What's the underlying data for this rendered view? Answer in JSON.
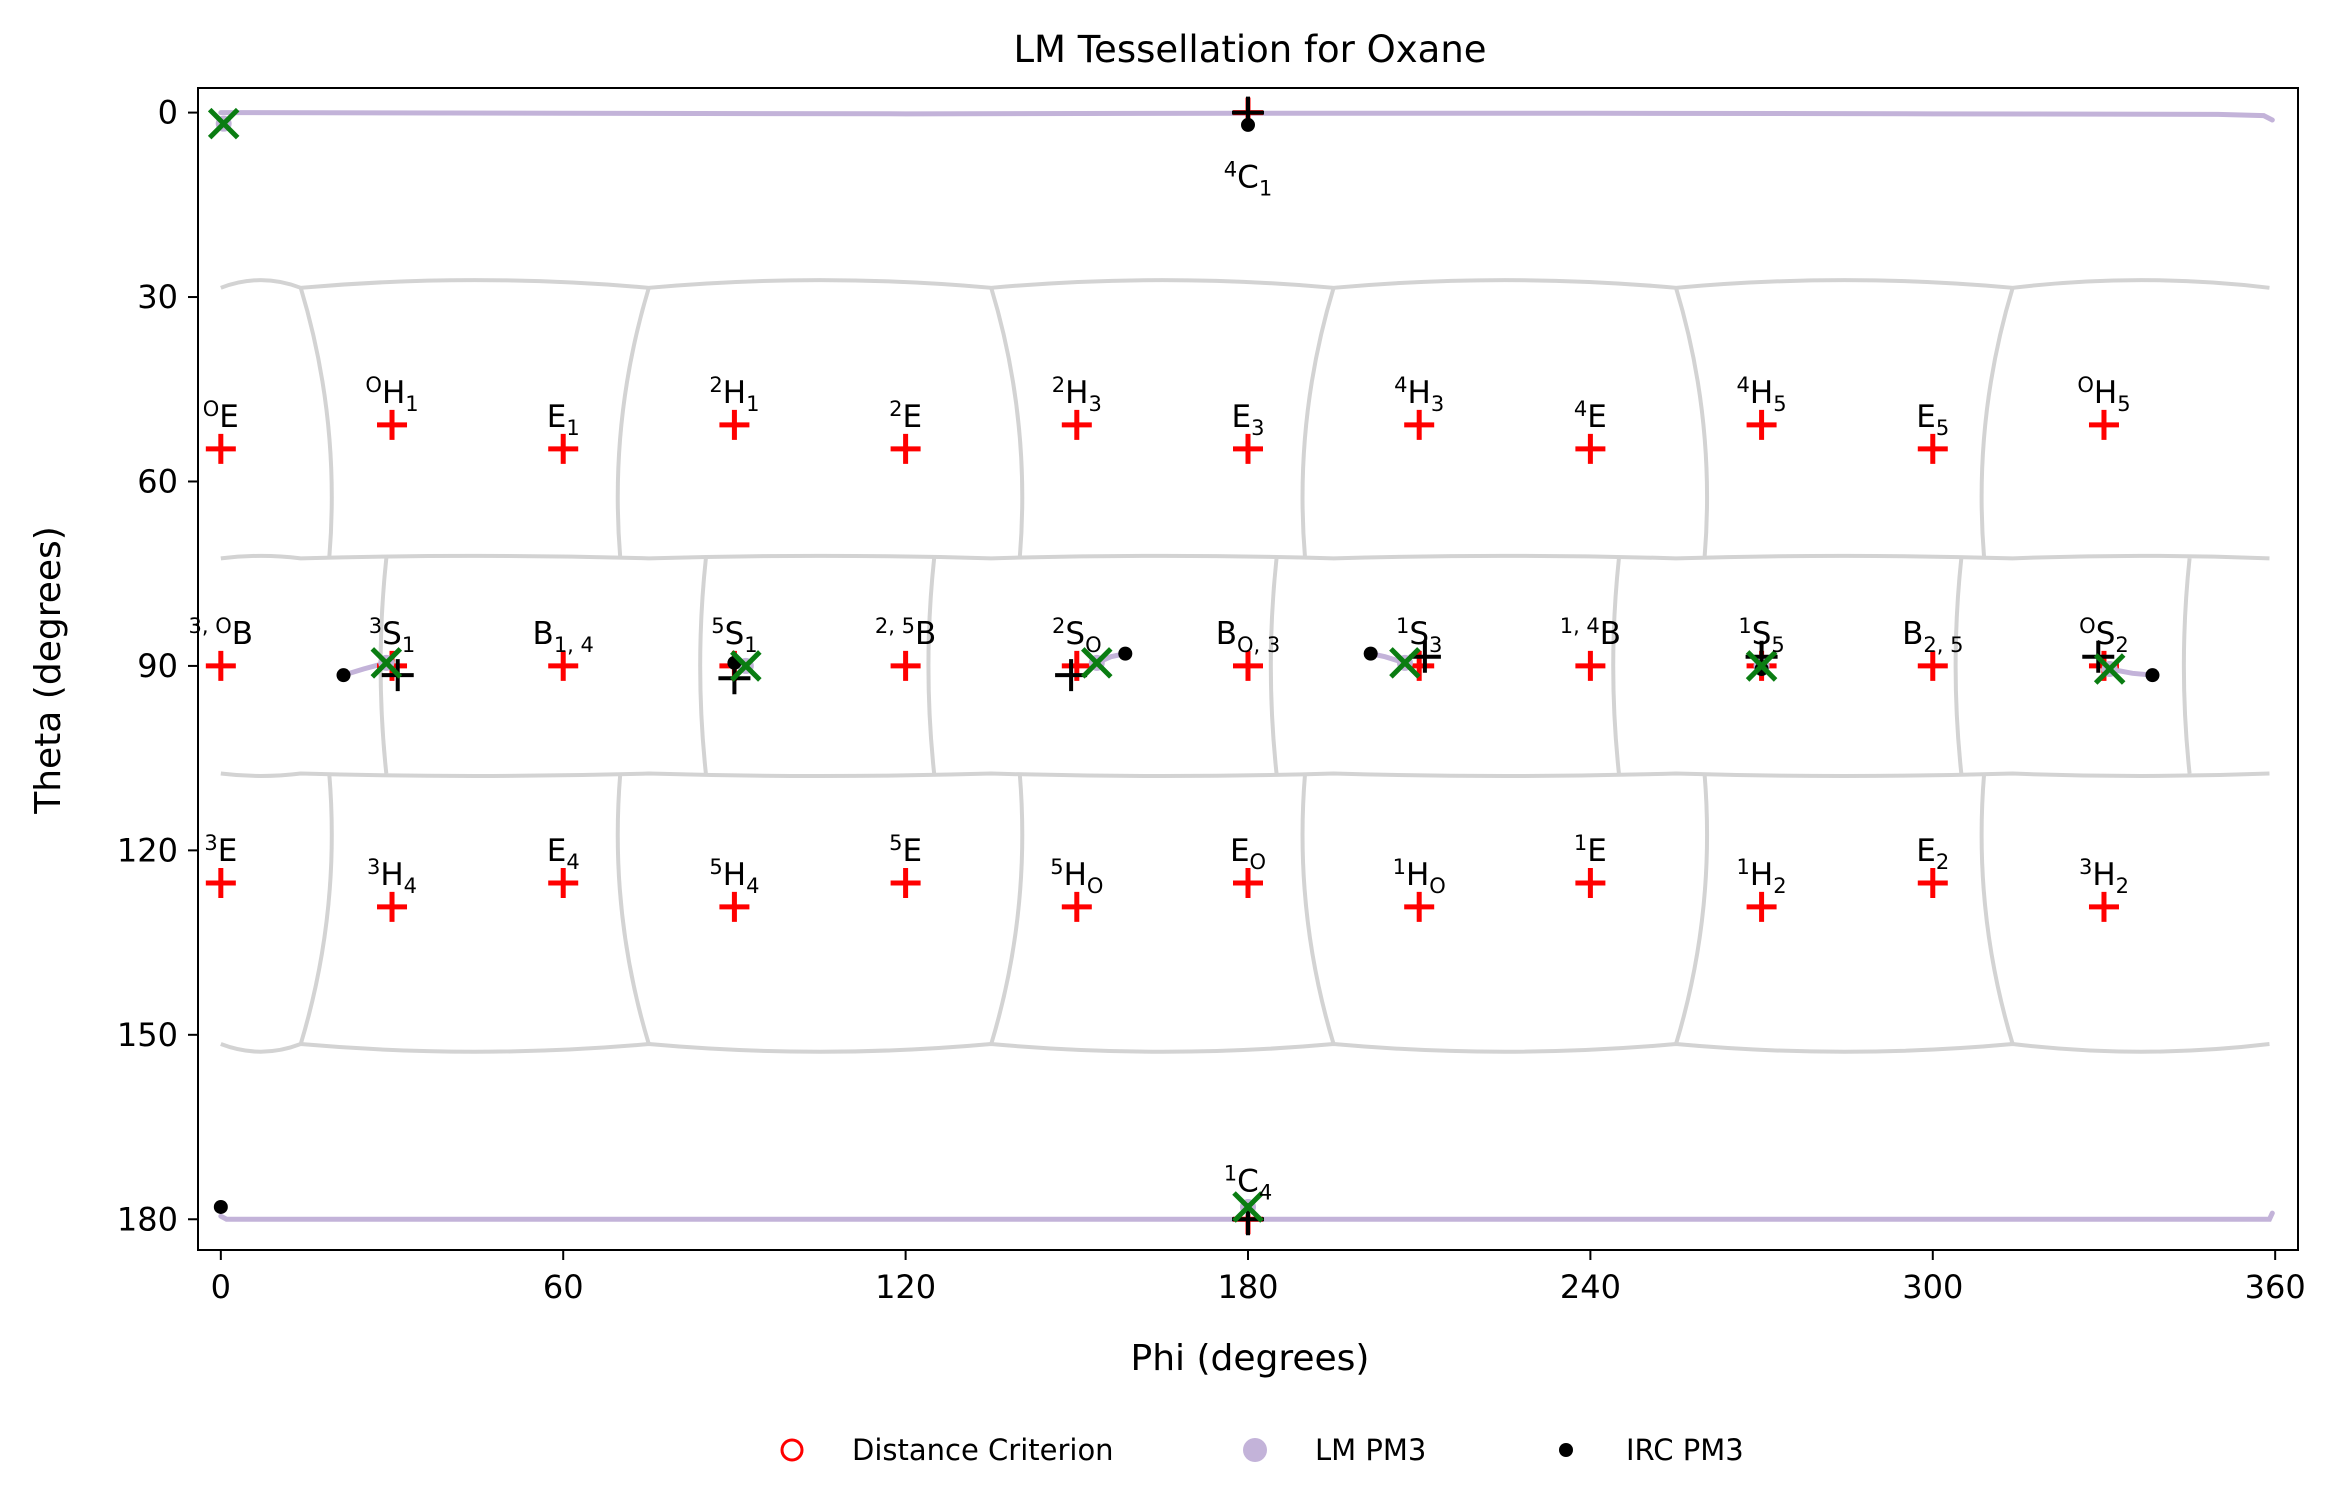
{
  "chart_data": {
    "type": "scatter",
    "title": "LM Tessellation for Oxane",
    "xlabel": "Phi (degrees)",
    "ylabel": "Theta (degrees)",
    "xlim": [
      -4,
      364
    ],
    "ylim": [
      185,
      -4
    ],
    "y_inverted": true,
    "xticks": [
      0,
      60,
      120,
      180,
      240,
      300,
      360
    ],
    "yticks": [
      0,
      30,
      60,
      90,
      120,
      150,
      180
    ],
    "grid": false,
    "legend_position": "bottom-center",
    "legend": [
      {
        "name": "Distance Criterion",
        "marker": "open-circle",
        "color": "#ff0000"
      },
      {
        "name": "LM PM3",
        "marker": "circle",
        "color": "#c3b3d9"
      },
      {
        "name": "IRC PM3",
        "marker": "dot",
        "color": "#000000"
      }
    ],
    "reference_points": [
      {
        "sup": "4",
        "base": "C",
        "sub": "1",
        "phi": 180,
        "theta": 0
      },
      {
        "sup": "O",
        "base": "E",
        "sub": "",
        "phi": 0,
        "theta": 54.7
      },
      {
        "sup": "O",
        "base": "H",
        "sub": "1",
        "phi": 30,
        "theta": 50.8
      },
      {
        "sup": "",
        "base": "E",
        "sub": "1",
        "phi": 60,
        "theta": 54.7
      },
      {
        "sup": "2",
        "base": "H",
        "sub": "1",
        "phi": 90,
        "theta": 50.8
      },
      {
        "sup": "2",
        "base": "E",
        "sub": "",
        "phi": 120,
        "theta": 54.7
      },
      {
        "sup": "2",
        "base": "H",
        "sub": "3",
        "phi": 150,
        "theta": 50.8
      },
      {
        "sup": "",
        "base": "E",
        "sub": "3",
        "phi": 180,
        "theta": 54.7
      },
      {
        "sup": "4",
        "base": "H",
        "sub": "3",
        "phi": 210,
        "theta": 50.8
      },
      {
        "sup": "4",
        "base": "E",
        "sub": "",
        "phi": 240,
        "theta": 54.7
      },
      {
        "sup": "4",
        "base": "H",
        "sub": "5",
        "phi": 270,
        "theta": 50.8
      },
      {
        "sup": "",
        "base": "E",
        "sub": "5",
        "phi": 300,
        "theta": 54.7
      },
      {
        "sup": "O",
        "base": "H",
        "sub": "5",
        "phi": 330,
        "theta": 50.8
      },
      {
        "sup": "3, O",
        "base": "B",
        "sub": "",
        "phi": 0,
        "theta": 90
      },
      {
        "sup": "3",
        "base": "S",
        "sub": "1",
        "phi": 30,
        "theta": 90
      },
      {
        "sup": "",
        "base": "B",
        "sub": "1, 4",
        "phi": 60,
        "theta": 90
      },
      {
        "sup": "5",
        "base": "S",
        "sub": "1",
        "phi": 90,
        "theta": 90
      },
      {
        "sup": "2, 5",
        "base": "B",
        "sub": "",
        "phi": 120,
        "theta": 90
      },
      {
        "sup": "2",
        "base": "S",
        "sub": "O",
        "phi": 150,
        "theta": 90
      },
      {
        "sup": "",
        "base": "B",
        "sub": "O, 3",
        "phi": 180,
        "theta": 90
      },
      {
        "sup": "1",
        "base": "S",
        "sub": "3",
        "phi": 210,
        "theta": 90
      },
      {
        "sup": "1, 4",
        "base": "B",
        "sub": "",
        "phi": 240,
        "theta": 90
      },
      {
        "sup": "1",
        "base": "S",
        "sub": "5",
        "phi": 270,
        "theta": 90
      },
      {
        "sup": "",
        "base": "B",
        "sub": "2, 5",
        "phi": 300,
        "theta": 90
      },
      {
        "sup": "O",
        "base": "S",
        "sub": "2",
        "phi": 330,
        "theta": 90
      },
      {
        "sup": "3",
        "base": "E",
        "sub": "",
        "phi": 0,
        "theta": 125.3
      },
      {
        "sup": "3",
        "base": "H",
        "sub": "4",
        "phi": 30,
        "theta": 129.2
      },
      {
        "sup": "",
        "base": "E",
        "sub": "4",
        "phi": 60,
        "theta": 125.3
      },
      {
        "sup": "5",
        "base": "H",
        "sub": "4",
        "phi": 90,
        "theta": 129.2
      },
      {
        "sup": "5",
        "base": "E",
        "sub": "",
        "phi": 120,
        "theta": 125.3
      },
      {
        "sup": "5",
        "base": "H",
        "sub": "O",
        "phi": 150,
        "theta": 129.2
      },
      {
        "sup": "",
        "base": "E",
        "sub": "O",
        "phi": 180,
        "theta": 125.3
      },
      {
        "sup": "1",
        "base": "H",
        "sub": "O",
        "phi": 210,
        "theta": 129.2
      },
      {
        "sup": "1",
        "base": "E",
        "sub": "",
        "phi": 240,
        "theta": 125.3
      },
      {
        "sup": "1",
        "base": "H",
        "sub": "2",
        "phi": 270,
        "theta": 129.2
      },
      {
        "sup": "",
        "base": "E",
        "sub": "2",
        "phi": 300,
        "theta": 125.3
      },
      {
        "sup": "3",
        "base": "H",
        "sub": "2",
        "phi": 330,
        "theta": 129.2
      },
      {
        "sup": "1",
        "base": "C",
        "sub": "4",
        "phi": 180,
        "theta": 180
      }
    ],
    "lm_pm3_points": [
      {
        "phi": 0.5,
        "theta": 1.8
      },
      {
        "phi": 29,
        "theta": 89.5
      },
      {
        "phi": 92,
        "theta": 90
      },
      {
        "phi": 153.5,
        "theta": 89.5
      },
      {
        "phi": 207.5,
        "theta": 89.5
      },
      {
        "phi": 270,
        "theta": 90
      },
      {
        "phi": 331,
        "theta": 90.5
      },
      {
        "phi": 180,
        "theta": 178
      }
    ],
    "irc_pm3_points": [
      {
        "phi": 180,
        "theta": 2
      },
      {
        "phi": 21.5,
        "theta": 91.5
      },
      {
        "phi": 90,
        "theta": 89.5
      },
      {
        "phi": 158.5,
        "theta": 88
      },
      {
        "phi": 201.5,
        "theta": 88
      },
      {
        "phi": 270,
        "theta": 90.5
      },
      {
        "phi": 338.5,
        "theta": 91.5
      },
      {
        "phi": 0,
        "theta": 178
      }
    ],
    "black_plus_points": [
      {
        "phi": 180,
        "theta": 0
      },
      {
        "phi": 31,
        "theta": 91.5
      },
      {
        "phi": 90,
        "theta": 92
      },
      {
        "phi": 149,
        "theta": 91.5
      },
      {
        "phi": 211,
        "theta": 88.5
      },
      {
        "phi": 270,
        "theta": 88.5
      },
      {
        "phi": 329,
        "theta": 88.5
      },
      {
        "phi": 180,
        "theta": 180
      }
    ],
    "lm_pm3_paths": [
      [
        [
          0,
          0
        ],
        [
          60,
          0.1
        ],
        [
          120,
          0.2
        ],
        [
          180,
          0.1
        ],
        [
          240,
          0.1
        ],
        [
          300,
          0.2
        ],
        [
          350,
          0.3
        ],
        [
          358,
          0.5
        ],
        [
          359.5,
          1.2
        ]
      ],
      [
        [
          0,
          179.5
        ],
        [
          1,
          180
        ],
        [
          60,
          180
        ],
        [
          120,
          180
        ],
        [
          180,
          180
        ],
        [
          240,
          180
        ],
        [
          300,
          180
        ],
        [
          359,
          180
        ],
        [
          359.5,
          179
        ]
      ],
      [
        [
          21.5,
          91.5
        ],
        [
          25,
          90.5
        ],
        [
          29,
          89.5
        ]
      ],
      [
        [
          153.5,
          89.5
        ],
        [
          156,
          88.5
        ],
        [
          158.5,
          88
        ]
      ],
      [
        [
          201.5,
          88
        ],
        [
          204,
          88.5
        ],
        [
          207.5,
          89.5
        ]
      ],
      [
        [
          331,
          90.5
        ],
        [
          335,
          91.2
        ],
        [
          338.5,
          91.5
        ]
      ]
    ],
    "tessellation_boundaries": {
      "top_band": {
        "theta": 28.5,
        "bulge": 2.5,
        "crossings": [
          14,
          75,
          135,
          195,
          255,
          314
        ]
      },
      "bottom_band": {
        "theta": 151.5,
        "bulge": 2.5,
        "crossings": [
          14,
          75,
          135,
          195,
          255,
          314
        ]
      },
      "upper_mid_theta": 72.5,
      "lower_mid_theta": 107.5,
      "mid_crossings": [
        34,
        90,
        130,
        190,
        250,
        310,
        350
      ]
    }
  },
  "colors": {
    "reference": "#ff0000",
    "lm": "#c3b3d9",
    "irc": "#000000",
    "green_cross": "#0a7d12",
    "boundary": "#d3d3d3",
    "axis": "#000000"
  }
}
